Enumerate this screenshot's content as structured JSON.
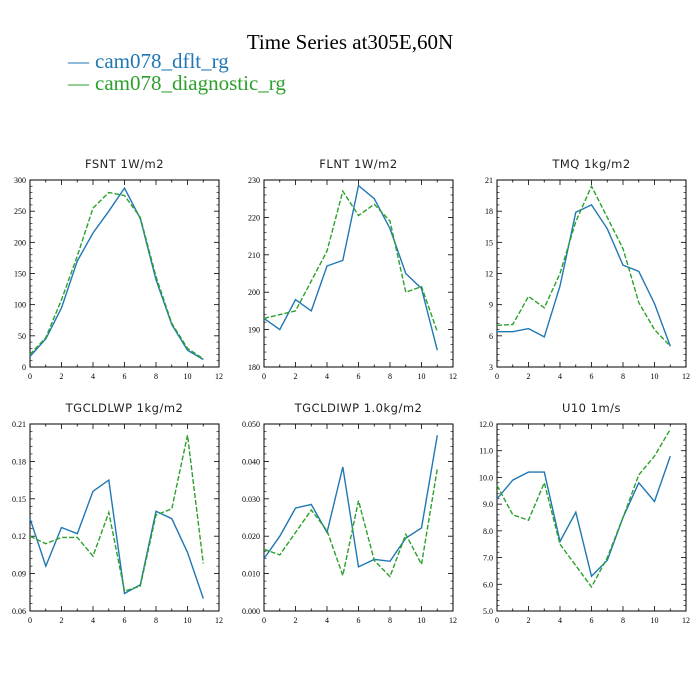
{
  "title": "Time Series at305E,60N",
  "legend": [
    {
      "label": "cam078_dflt_rg",
      "color": "#1f77b4",
      "dash": "—"
    },
    {
      "label": "cam078_diagnostic_rg",
      "color": "#2ca02c",
      "dash": "—"
    }
  ],
  "chart_data": [
    {
      "type": "line",
      "title": "FSNT",
      "units": "1W/m2",
      "xlim": [
        0,
        12
      ],
      "ylim": [
        0,
        300
      ],
      "xticks": [
        "0",
        "2",
        "4",
        "6",
        "8",
        "10",
        "12"
      ],
      "yticks": [
        "0",
        "50",
        "100",
        "150",
        "200",
        "250",
        "300"
      ],
      "x": [
        0,
        1,
        2,
        3,
        4,
        5,
        6,
        7,
        8,
        9,
        10,
        11
      ],
      "series": [
        {
          "name": "cam078_dflt_rg",
          "color": "#1f77b4",
          "style": "solid",
          "values": [
            17,
            45,
            95,
            170,
            215,
            250,
            287,
            238,
            140,
            68,
            27,
            12
          ]
        },
        {
          "name": "cam078_diagnostic_rg",
          "color": "#2ca02c",
          "style": "dashed",
          "values": [
            20,
            47,
            108,
            178,
            255,
            280,
            275,
            240,
            145,
            70,
            30,
            13
          ]
        }
      ]
    },
    {
      "type": "line",
      "title": "FLNT",
      "units": "1W/m2",
      "xlim": [
        0,
        12
      ],
      "ylim": [
        180,
        230
      ],
      "xticks": [
        "0",
        "2",
        "4",
        "6",
        "8",
        "10",
        "12"
      ],
      "yticks": [
        "180",
        "190",
        "200",
        "210",
        "220",
        "230"
      ],
      "x": [
        0,
        1,
        2,
        3,
        4,
        5,
        6,
        7,
        8,
        9,
        10,
        11
      ],
      "series": [
        {
          "name": "cam078_dflt_rg",
          "color": "#1f77b4",
          "style": "solid",
          "values": [
            193,
            190,
            198,
            195,
            207,
            208.5,
            228.5,
            225,
            217,
            205,
            201,
            184.5
          ]
        },
        {
          "name": "cam078_diagnostic_rg",
          "color": "#2ca02c",
          "style": "dashed",
          "values": [
            193,
            194,
            195,
            203,
            211,
            227,
            220.5,
            223.5,
            219,
            200,
            201.5,
            189.5
          ]
        }
      ]
    },
    {
      "type": "line",
      "title": "TMQ",
      "units": "1kg/m2",
      "xlim": [
        0,
        12
      ],
      "ylim": [
        3,
        21
      ],
      "xticks": [
        "0",
        "2",
        "4",
        "6",
        "8",
        "10",
        "12"
      ],
      "yticks": [
        "3",
        "6",
        "9",
        "12",
        "15",
        "18",
        "21"
      ],
      "x": [
        0,
        1,
        2,
        3,
        4,
        5,
        6,
        7,
        8,
        9,
        10,
        11
      ],
      "series": [
        {
          "name": "cam078_dflt_rg",
          "color": "#1f77b4",
          "style": "solid",
          "values": [
            6.4,
            6.4,
            6.7,
            5.9,
            10.8,
            17.9,
            18.6,
            16.3,
            12.8,
            12.2,
            9.1,
            5.0
          ]
        },
        {
          "name": "cam078_diagnostic_rg",
          "color": "#2ca02c",
          "style": "dashed",
          "values": [
            7.0,
            7.1,
            9.8,
            8.7,
            12.0,
            17.0,
            20.4,
            17.4,
            14.4,
            9.2,
            6.6,
            5.0
          ]
        }
      ]
    },
    {
      "type": "line",
      "title": "TGCLDLWP",
      "units": "1kg/m2",
      "xlim": [
        0,
        12
      ],
      "ylim": [
        0.06,
        0.21
      ],
      "xticks": [
        "0",
        "2",
        "4",
        "6",
        "8",
        "10",
        "12"
      ],
      "yticks": [
        "0.06",
        "0.09",
        "0.12",
        "0.15",
        "0.18",
        "0.21"
      ],
      "x": [
        0,
        1,
        2,
        3,
        4,
        5,
        6,
        7,
        8,
        9,
        10,
        11
      ],
      "series": [
        {
          "name": "cam078_dflt_rg",
          "color": "#1f77b4",
          "style": "solid",
          "values": [
            0.134,
            0.096,
            0.127,
            0.122,
            0.156,
            0.165,
            0.074,
            0.081,
            0.14,
            0.134,
            0.107,
            0.07
          ]
        },
        {
          "name": "cam078_diagnostic_rg",
          "color": "#2ca02c",
          "style": "dashed",
          "values": [
            0.12,
            0.114,
            0.119,
            0.119,
            0.104,
            0.139,
            0.076,
            0.08,
            0.137,
            0.142,
            0.201,
            0.098
          ]
        }
      ]
    },
    {
      "type": "line",
      "title": "TGCLDIWP",
      "units": "1.0kg/m2",
      "xlim": [
        0,
        12
      ],
      "ylim": [
        0.0,
        0.05
      ],
      "xticks": [
        "0",
        "2",
        "4",
        "6",
        "8",
        "10",
        "12"
      ],
      "yticks": [
        "0.000",
        "0.010",
        "0.020",
        "0.030",
        "0.040",
        "0.050"
      ],
      "x": [
        0,
        1,
        2,
        3,
        4,
        5,
        6,
        7,
        8,
        9,
        10,
        11
      ],
      "series": [
        {
          "name": "cam078_dflt_rg",
          "color": "#1f77b4",
          "style": "solid",
          "values": [
            0.014,
            0.02,
            0.0275,
            0.0285,
            0.021,
            0.0385,
            0.0118,
            0.0138,
            0.0133,
            0.0195,
            0.0222,
            0.047
          ]
        },
        {
          "name": "cam078_diagnostic_rg",
          "color": "#2ca02c",
          "style": "dashed",
          "values": [
            0.0165,
            0.015,
            0.021,
            0.027,
            0.0215,
            0.0095,
            0.0295,
            0.0135,
            0.0092,
            0.0205,
            0.0125,
            0.038
          ]
        }
      ]
    },
    {
      "type": "line",
      "title": "U10",
      "units": "1m/s",
      "xlim": [
        0,
        12
      ],
      "ylim": [
        5.0,
        12.0
      ],
      "xticks": [
        "0",
        "2",
        "4",
        "6",
        "8",
        "10",
        "12"
      ],
      "yticks": [
        "5.0",
        "6.0",
        "7.0",
        "8.0",
        "9.0",
        "10.0",
        "11.0",
        "12.0"
      ],
      "x": [
        0,
        1,
        2,
        3,
        4,
        5,
        6,
        7,
        8,
        9,
        10,
        11
      ],
      "series": [
        {
          "name": "cam078_dflt_rg",
          "color": "#1f77b4",
          "style": "solid",
          "values": [
            9.2,
            9.9,
            10.2,
            10.2,
            7.6,
            8.7,
            6.3,
            6.9,
            8.5,
            9.8,
            9.1,
            10.8
          ]
        },
        {
          "name": "cam078_diagnostic_rg",
          "color": "#2ca02c",
          "style": "dashed",
          "values": [
            9.7,
            8.6,
            8.4,
            9.8,
            7.5,
            6.7,
            5.9,
            7.0,
            8.5,
            10.1,
            10.8,
            11.8
          ]
        }
      ]
    }
  ]
}
